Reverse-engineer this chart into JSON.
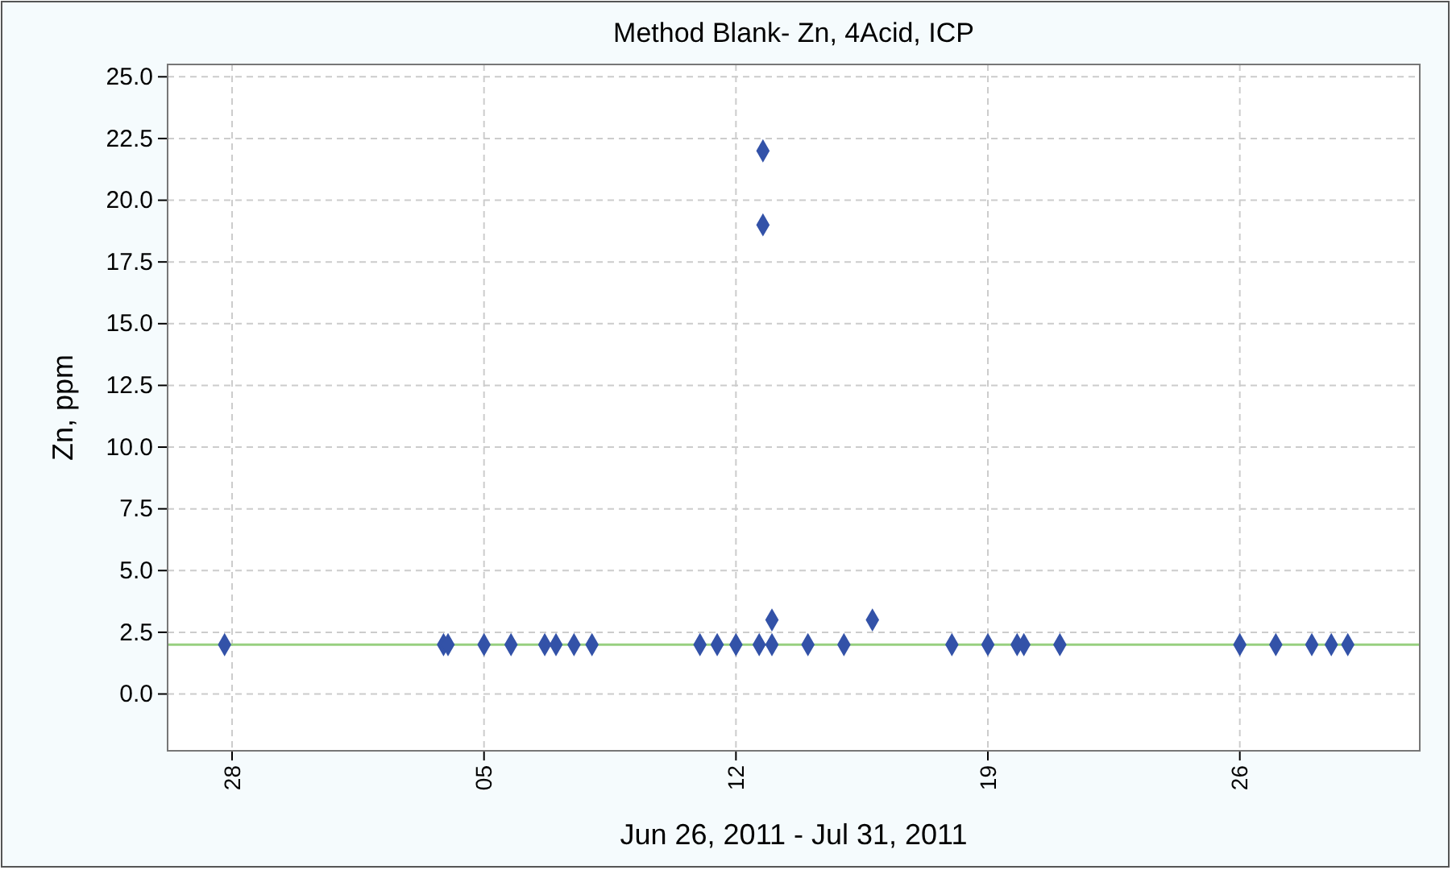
{
  "chart_data": {
    "type": "scatter",
    "title": "Method Blank- Zn, 4Acid, ICP",
    "xlabel": "Jun 26, 2011 - Jul 31, 2011",
    "ylabel": "Zn, ppm",
    "xlim": [
      "2011-06-26T05:00",
      "2011-07-31"
    ],
    "ylim": [
      -2.3,
      25.5
    ],
    "xticks": [
      {
        "value": "2011-06-28",
        "label": "28"
      },
      {
        "value": "2011-07-05",
        "label": "05"
      },
      {
        "value": "2011-07-12",
        "label": "12"
      },
      {
        "value": "2011-07-19",
        "label": "19"
      },
      {
        "value": "2011-07-26",
        "label": "26"
      }
    ],
    "yticks": [
      {
        "value": 0,
        "label": "0.0"
      },
      {
        "value": 2.5,
        "label": "2.5"
      },
      {
        "value": 5,
        "label": "5.0"
      },
      {
        "value": 7.5,
        "label": "7.5"
      },
      {
        "value": 10,
        "label": "10.0"
      },
      {
        "value": 12.5,
        "label": "12.5"
      },
      {
        "value": 15,
        "label": "15.0"
      },
      {
        "value": 17.5,
        "label": "17.5"
      },
      {
        "value": 20,
        "label": "20.0"
      },
      {
        "value": 22.5,
        "label": "22.5"
      },
      {
        "value": 25,
        "label": "25.0"
      }
    ],
    "grid": true,
    "marker": "diamond",
    "ref_lines": [
      {
        "axis": "y",
        "value": 2,
        "color": "#98d080"
      }
    ],
    "series": [
      {
        "color": "#3352a8",
        "x": [
          "2011-06-27T19:00",
          "2011-07-03T21:00",
          "2011-07-04",
          "2011-07-05",
          "2011-07-05T18:00",
          "2011-07-06T16:30",
          "2011-07-07",
          "2011-07-07T12:00",
          "2011-07-08",
          "2011-07-11",
          "2011-07-11T11:30",
          "2011-07-12",
          "2011-07-12T15:30",
          "2011-07-12T18:00",
          "2011-07-12T18:00",
          "2011-07-13",
          "2011-07-13",
          "2011-07-14",
          "2011-07-15",
          "2011-07-15T19:00",
          "2011-07-18",
          "2011-07-19",
          "2011-07-19T19:30",
          "2011-07-20",
          "2011-07-21",
          "2011-07-26",
          "2011-07-27",
          "2011-07-28",
          "2011-07-28T13:00",
          "2011-07-29"
        ],
        "values": [
          2,
          2,
          2,
          2,
          2,
          2,
          2,
          2,
          2,
          2,
          2,
          2,
          2,
          22,
          19,
          2,
          3,
          2,
          2,
          3,
          2,
          2,
          2,
          2,
          2,
          2,
          2,
          2,
          2,
          2
        ]
      }
    ]
  }
}
